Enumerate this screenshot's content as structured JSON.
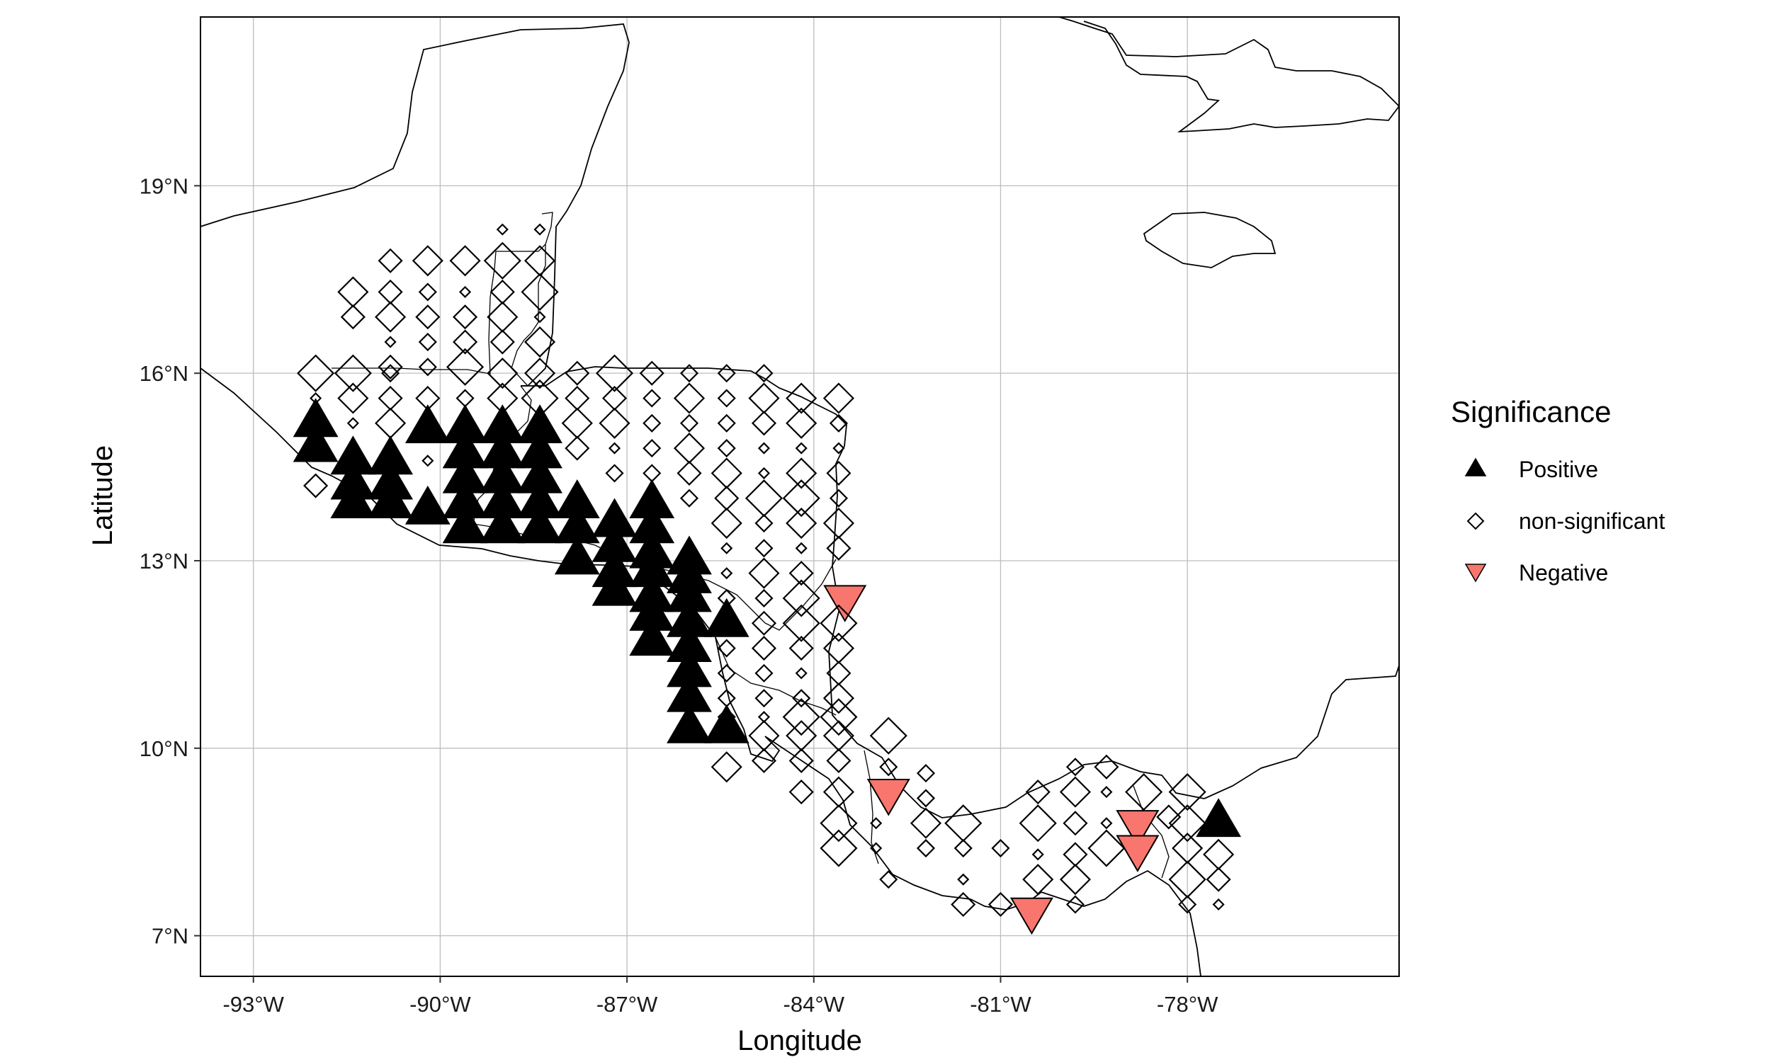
{
  "chart_data": {
    "type": "scatter",
    "xlabel": "Longitude",
    "ylabel": "Latitude",
    "xlim": [
      -93.85,
      -74.6
    ],
    "ylim": [
      6.35,
      21.7
    ],
    "x_ticks": [
      {
        "value": -93,
        "label": "-93°W"
      },
      {
        "value": -90,
        "label": "-90°W"
      },
      {
        "value": -87,
        "label": "-87°W"
      },
      {
        "value": -84,
        "label": "-84°W"
      },
      {
        "value": -81,
        "label": "-81°W"
      },
      {
        "value": -78,
        "label": "-78°W"
      }
    ],
    "y_ticks": [
      {
        "value": 7,
        "label": "7°N"
      },
      {
        "value": 10,
        "label": "10°N"
      },
      {
        "value": 13,
        "label": "13°N"
      },
      {
        "value": 16,
        "label": "16°N"
      },
      {
        "value": 19,
        "label": "19°N"
      }
    ],
    "grid": true,
    "legend": {
      "title": "Significance",
      "position": "right",
      "entries": [
        {
          "label": "Positive",
          "shape": "triangle-up",
          "color": "#000000"
        },
        {
          "label": "non-significant",
          "shape": "diamond-open",
          "color": "#000000"
        },
        {
          "label": "Negative",
          "shape": "triangle-down",
          "color": "#F8766D"
        }
      ]
    },
    "series": [
      {
        "name": "Positive",
        "points": [
          [
            -92.0,
            15.2
          ],
          [
            -92.0,
            14.8
          ],
          [
            -91.4,
            14.6
          ],
          [
            -91.4,
            14.2
          ],
          [
            -91.4,
            13.9
          ],
          [
            -90.8,
            14.6
          ],
          [
            -90.8,
            14.2
          ],
          [
            -90.8,
            13.9
          ],
          [
            -90.2,
            15.1
          ],
          [
            -90.2,
            13.8
          ],
          [
            -89.6,
            15.1
          ],
          [
            -89.6,
            14.7
          ],
          [
            -89.6,
            14.3
          ],
          [
            -89.6,
            13.9
          ],
          [
            -89.6,
            13.5
          ],
          [
            -89.0,
            15.1
          ],
          [
            -89.0,
            14.7
          ],
          [
            -89.0,
            14.3
          ],
          [
            -89.0,
            13.9
          ],
          [
            -89.0,
            13.5
          ],
          [
            -88.4,
            15.1
          ],
          [
            -88.4,
            14.7
          ],
          [
            -88.4,
            14.3
          ],
          [
            -88.4,
            13.9
          ],
          [
            -88.4,
            13.5
          ],
          [
            -87.8,
            13.9
          ],
          [
            -87.8,
            13.5
          ],
          [
            -87.8,
            13.0
          ],
          [
            -87.2,
            13.6
          ],
          [
            -87.2,
            13.2
          ],
          [
            -87.2,
            12.8
          ],
          [
            -87.2,
            12.5
          ],
          [
            -86.6,
            13.9
          ],
          [
            -86.6,
            13.5
          ],
          [
            -86.6,
            13.1
          ],
          [
            -86.6,
            12.8
          ],
          [
            -86.6,
            12.4
          ],
          [
            -86.6,
            12.1
          ],
          [
            -86.6,
            11.7
          ],
          [
            -86.0,
            13.0
          ],
          [
            -86.0,
            12.7
          ],
          [
            -86.0,
            12.4
          ],
          [
            -86.0,
            12.0
          ],
          [
            -86.0,
            11.6
          ],
          [
            -86.0,
            11.2
          ],
          [
            -86.0,
            10.8
          ],
          [
            -86.0,
            10.3
          ],
          [
            -85.4,
            12.0
          ],
          [
            -85.4,
            10.3
          ],
          [
            -77.5,
            8.8
          ]
        ]
      },
      {
        "name": "Negative",
        "points": [
          [
            -83.5,
            12.4
          ],
          [
            -82.8,
            9.3
          ],
          [
            -80.5,
            7.4
          ],
          [
            -78.8,
            8.8
          ],
          [
            -78.8,
            8.4
          ]
        ]
      },
      {
        "name": "non-significant",
        "points": [
          [
            -89.0,
            18.3
          ],
          [
            -88.4,
            18.3
          ],
          [
            -90.8,
            17.8
          ],
          [
            -90.2,
            17.8
          ],
          [
            -89.6,
            17.8
          ],
          [
            -89.0,
            17.8
          ],
          [
            -88.4,
            17.8
          ],
          [
            -91.4,
            17.3
          ],
          [
            -90.8,
            17.3
          ],
          [
            -90.2,
            17.3
          ],
          [
            -89.6,
            17.3
          ],
          [
            -89.0,
            17.3
          ],
          [
            -88.4,
            17.3
          ],
          [
            -91.4,
            16.9
          ],
          [
            -90.8,
            16.9
          ],
          [
            -90.2,
            16.9
          ],
          [
            -89.6,
            16.9
          ],
          [
            -89.0,
            16.9
          ],
          [
            -88.4,
            16.9
          ],
          [
            -90.8,
            16.5
          ],
          [
            -90.2,
            16.5
          ],
          [
            -89.6,
            16.5
          ],
          [
            -89.0,
            16.5
          ],
          [
            -88.4,
            16.5
          ],
          [
            -90.8,
            16.1
          ],
          [
            -90.2,
            16.1
          ],
          [
            -89.6,
            16.1
          ],
          [
            -92.0,
            16.0
          ],
          [
            -91.4,
            16.0
          ],
          [
            -90.8,
            16.0
          ],
          [
            -89.0,
            16.0
          ],
          [
            -88.4,
            16.0
          ],
          [
            -87.8,
            16.0
          ],
          [
            -87.2,
            16.0
          ],
          [
            -86.6,
            16.0
          ],
          [
            -86.0,
            16.0
          ],
          [
            -85.4,
            16.0
          ],
          [
            -84.8,
            16.0
          ],
          [
            -92.0,
            15.6
          ],
          [
            -91.4,
            15.6
          ],
          [
            -90.8,
            15.6
          ],
          [
            -90.2,
            15.6
          ],
          [
            -89.6,
            15.6
          ],
          [
            -89.0,
            15.6
          ],
          [
            -88.4,
            15.6
          ],
          [
            -87.8,
            15.6
          ],
          [
            -87.2,
            15.6
          ],
          [
            -86.6,
            15.6
          ],
          [
            -86.0,
            15.6
          ],
          [
            -85.4,
            15.6
          ],
          [
            -84.8,
            15.6
          ],
          [
            -84.2,
            15.6
          ],
          [
            -83.6,
            15.6
          ],
          [
            -91.4,
            15.2
          ],
          [
            -90.8,
            15.2
          ],
          [
            -87.8,
            15.2
          ],
          [
            -87.2,
            15.2
          ],
          [
            -86.6,
            15.2
          ],
          [
            -86.0,
            15.2
          ],
          [
            -85.4,
            15.2
          ],
          [
            -84.8,
            15.2
          ],
          [
            -84.2,
            15.2
          ],
          [
            -83.6,
            15.2
          ],
          [
            -92.0,
            14.2
          ],
          [
            -90.2,
            14.6
          ],
          [
            -87.8,
            14.8
          ],
          [
            -87.2,
            14.8
          ],
          [
            -86.6,
            14.8
          ],
          [
            -86.0,
            14.8
          ],
          [
            -85.4,
            14.8
          ],
          [
            -84.8,
            14.8
          ],
          [
            -84.2,
            14.8
          ],
          [
            -83.6,
            14.8
          ],
          [
            -87.2,
            14.4
          ],
          [
            -86.6,
            14.4
          ],
          [
            -86.0,
            14.4
          ],
          [
            -85.4,
            14.4
          ],
          [
            -84.8,
            14.4
          ],
          [
            -84.2,
            14.4
          ],
          [
            -83.6,
            14.4
          ],
          [
            -86.0,
            14.0
          ],
          [
            -85.4,
            14.0
          ],
          [
            -84.8,
            14.0
          ],
          [
            -84.2,
            14.0
          ],
          [
            -83.6,
            14.0
          ],
          [
            -85.4,
            13.6
          ],
          [
            -84.8,
            13.6
          ],
          [
            -84.2,
            13.6
          ],
          [
            -83.6,
            13.6
          ],
          [
            -85.4,
            13.2
          ],
          [
            -84.8,
            13.2
          ],
          [
            -84.2,
            13.2
          ],
          [
            -83.6,
            13.2
          ],
          [
            -85.4,
            12.8
          ],
          [
            -84.8,
            12.8
          ],
          [
            -84.2,
            12.8
          ],
          [
            -85.4,
            12.4
          ],
          [
            -84.8,
            12.4
          ],
          [
            -84.2,
            12.4
          ],
          [
            -84.8,
            12.0
          ],
          [
            -84.2,
            12.0
          ],
          [
            -83.6,
            12.0
          ],
          [
            -85.4,
            11.6
          ],
          [
            -84.8,
            11.6
          ],
          [
            -84.2,
            11.6
          ],
          [
            -83.6,
            11.6
          ],
          [
            -85.4,
            11.2
          ],
          [
            -84.8,
            11.2
          ],
          [
            -84.2,
            11.2
          ],
          [
            -83.6,
            11.2
          ],
          [
            -85.4,
            10.8
          ],
          [
            -84.8,
            10.8
          ],
          [
            -84.2,
            10.8
          ],
          [
            -83.6,
            10.8
          ],
          [
            -85.4,
            10.5
          ],
          [
            -84.8,
            10.5
          ],
          [
            -84.2,
            10.5
          ],
          [
            -83.6,
            10.5
          ],
          [
            -84.8,
            10.2
          ],
          [
            -84.2,
            10.2
          ],
          [
            -83.6,
            10.2
          ],
          [
            -82.8,
            10.2
          ],
          [
            -85.4,
            9.7
          ],
          [
            -84.8,
            9.8
          ],
          [
            -84.2,
            9.8
          ],
          [
            -83.6,
            9.8
          ],
          [
            -82.8,
            9.7
          ],
          [
            -82.2,
            9.6
          ],
          [
            -84.2,
            9.3
          ],
          [
            -83.6,
            9.3
          ],
          [
            -82.2,
            9.2
          ],
          [
            -83.6,
            8.8
          ],
          [
            -83.0,
            8.8
          ],
          [
            -82.2,
            8.8
          ],
          [
            -81.6,
            8.8
          ],
          [
            -83.6,
            8.4
          ],
          [
            -83.0,
            8.4
          ],
          [
            -82.2,
            8.4
          ],
          [
            -81.6,
            8.4
          ],
          [
            -82.8,
            7.9
          ],
          [
            -81.6,
            7.9
          ],
          [
            -81.0,
            8.4
          ],
          [
            -81.6,
            7.5
          ],
          [
            -81.0,
            7.5
          ],
          [
            -80.4,
            9.3
          ],
          [
            -80.4,
            8.8
          ],
          [
            -80.4,
            8.3
          ],
          [
            -80.4,
            7.9
          ],
          [
            -79.8,
            9.7
          ],
          [
            -79.8,
            9.3
          ],
          [
            -79.8,
            8.8
          ],
          [
            -79.8,
            8.3
          ],
          [
            -79.8,
            7.9
          ],
          [
            -79.8,
            7.5
          ],
          [
            -79.3,
            9.7
          ],
          [
            -79.3,
            9.3
          ],
          [
            -79.3,
            8.8
          ],
          [
            -79.3,
            8.4
          ],
          [
            -78.7,
            9.3
          ],
          [
            -78.3,
            8.9
          ],
          [
            -78.0,
            9.3
          ],
          [
            -78.0,
            8.8
          ],
          [
            -78.0,
            8.4
          ],
          [
            -78.0,
            7.9
          ],
          [
            -78.0,
            7.5
          ],
          [
            -77.5,
            8.3
          ],
          [
            -77.5,
            7.9
          ],
          [
            -77.5,
            7.5
          ]
        ]
      }
    ]
  }
}
